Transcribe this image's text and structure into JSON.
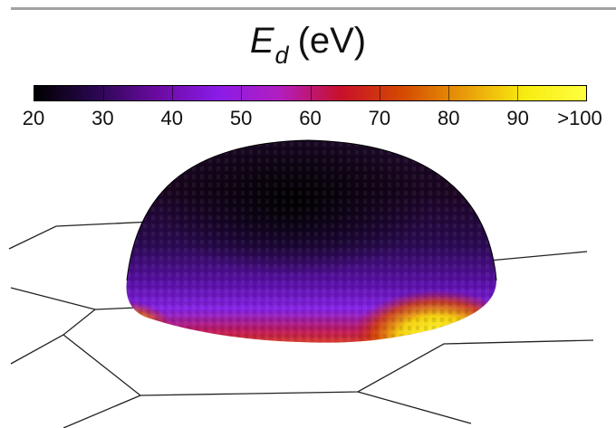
{
  "title": {
    "symbol": "E",
    "subscript": "d",
    "unit": "(eV)"
  },
  "chart_data": {
    "type": "heatmap",
    "title": "E_d (eV)",
    "colorbar": {
      "min": 20,
      "max": 100,
      "ticks": [
        20,
        30,
        40,
        50,
        60,
        70,
        80,
        90,
        100
      ],
      "tick_labels": [
        "20",
        "30",
        "40",
        "50",
        "60",
        "70",
        "80",
        "90",
        ">100"
      ],
      "colors": [
        "#000000",
        "#2a0750",
        "#6a0aa0",
        "#8a1ce8",
        "#b21ec0",
        "#c8102a",
        "#d44a00",
        "#e89a08",
        "#f8ec10",
        "#ffff40"
      ]
    },
    "surface": "hemisphere over a hexagonal lattice",
    "regions": [
      {
        "region": "top of hemisphere",
        "value_range": [
          20,
          30
        ]
      },
      {
        "region": "middle band",
        "value_range": [
          35,
          50
        ]
      },
      {
        "region": "lower rim",
        "value_range": [
          55,
          100
        ]
      },
      {
        "region": "front-right rim patch",
        "value_range": [
          90,
          100
        ]
      }
    ]
  }
}
